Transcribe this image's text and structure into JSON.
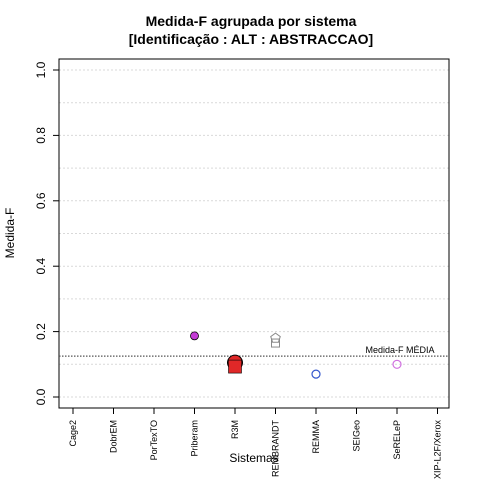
{
  "chart_data": {
    "type": "scatter",
    "title": "Medida-F agrupada por sistema",
    "subtitle": "[Identificação : ALT : ABSTRACCAO]",
    "xlabel": "Sistemas",
    "ylabel": "Medida-F",
    "ylim": [
      0,
      1
    ],
    "y_ticks": [
      "0.0",
      "0.2",
      "0.4",
      "0.6",
      "0.8",
      "1.0"
    ],
    "grid": true,
    "categories": [
      "Cage2",
      "DobrEM",
      "PorTexTO",
      "Priberam",
      "R3M",
      "REMBRANDT",
      "REMMA",
      "SEIGeo",
      "SeRELeP",
      "XIP-L2F/Xerox"
    ],
    "points": [
      {
        "category": "Priberam",
        "value": 0.187,
        "marker": "filled-circle",
        "color": "#c43bd6"
      },
      {
        "category": "R3M",
        "value": 0.105,
        "marker": "large-filled-circle",
        "color": "#e02828"
      },
      {
        "category": "R3M",
        "value": 0.093,
        "marker": "filled-square",
        "color": "#e02828"
      },
      {
        "category": "REMBRANDT",
        "value": 0.18,
        "marker": "open-pentagon",
        "color": "#8a8a8a"
      },
      {
        "category": "REMBRANDT",
        "value": 0.165,
        "marker": "open-square",
        "color": "#8a8a8a"
      },
      {
        "category": "REMMA",
        "value": 0.07,
        "marker": "open-circle",
        "color": "#3355cc"
      },
      {
        "category": "SeRELeP",
        "value": 0.1,
        "marker": "open-circle",
        "color": "#d070e0"
      }
    ],
    "reference_line": {
      "value": 0.125,
      "label": "Medida-F MÉDIA"
    }
  }
}
